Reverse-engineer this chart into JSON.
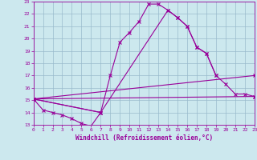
{
  "xlabel": "Windchill (Refroidissement éolien,°C)",
  "xlim": [
    0,
    23
  ],
  "ylim": [
    13,
    23
  ],
  "xticks": [
    0,
    1,
    2,
    3,
    4,
    5,
    6,
    7,
    8,
    9,
    10,
    11,
    12,
    13,
    14,
    15,
    16,
    17,
    18,
    19,
    20,
    21,
    22,
    23
  ],
  "yticks": [
    13,
    14,
    15,
    16,
    17,
    18,
    19,
    20,
    21,
    22,
    23
  ],
  "bg_color": "#cce8ee",
  "line_color": "#990099",
  "grid_color": "#99bbcc",
  "lines": [
    {
      "x": [
        0,
        1,
        2,
        3,
        4,
        5,
        6,
        7
      ],
      "y": [
        15.1,
        14.2,
        14.0,
        13.8,
        13.5,
        13.1,
        12.9,
        14.0
      ]
    },
    {
      "x": [
        0,
        7,
        8,
        9,
        10,
        11,
        12,
        13,
        14,
        15,
        16,
        17,
        18,
        19
      ],
      "y": [
        15.1,
        14.0,
        17.0,
        19.7,
        20.5,
        21.4,
        22.8,
        22.8,
        22.3,
        21.7,
        21.0,
        19.3,
        18.8,
        17.0
      ]
    },
    {
      "x": [
        0,
        7,
        14,
        15,
        16,
        17,
        18,
        19,
        20,
        21,
        22,
        23
      ],
      "y": [
        15.1,
        14.0,
        22.3,
        21.7,
        21.0,
        19.3,
        18.8,
        17.0,
        16.3,
        15.5,
        15.5,
        15.3
      ]
    },
    {
      "x": [
        0,
        23
      ],
      "y": [
        15.1,
        15.3
      ]
    },
    {
      "x": [
        0,
        23
      ],
      "y": [
        15.1,
        17.0
      ]
    }
  ]
}
